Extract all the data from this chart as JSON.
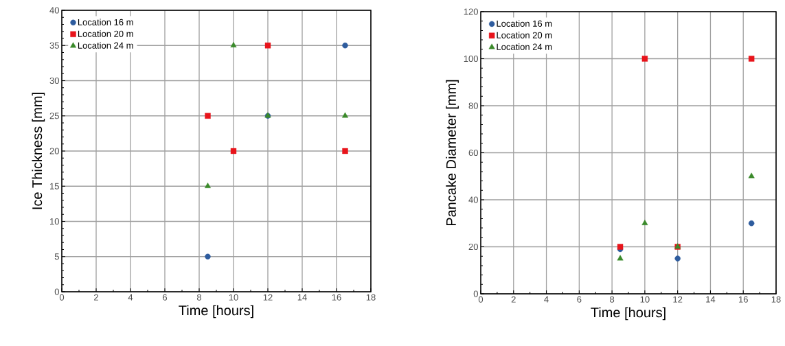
{
  "chart_data": [
    {
      "type": "scatter",
      "xlabel": "Time [hours]",
      "ylabel": "Ice Thickness [mm]",
      "xlim": [
        0,
        18
      ],
      "xticks": [
        0,
        2,
        4,
        6,
        8,
        10,
        12,
        14,
        16,
        18
      ],
      "ylim": [
        0,
        40
      ],
      "yticks": [
        0,
        5,
        10,
        15,
        20,
        25,
        30,
        35,
        40
      ],
      "grid": true,
      "legend": "top left",
      "series": [
        {
          "name": "Location 16 m",
          "color": "#2e5c9e",
          "marker": "circle",
          "x": [
            8.5,
            12,
            16.5
          ],
          "values": [
            5,
            25,
            35
          ]
        },
        {
          "name": "Location 20 m",
          "color": "#e8141b",
          "marker": "square",
          "x": [
            8.5,
            10,
            12,
            16.5
          ],
          "values": [
            25,
            20,
            35,
            20
          ]
        },
        {
          "name": "Location 24 m",
          "color": "#3a8a2a",
          "marker": "triangle",
          "x": [
            8.5,
            10,
            12,
            16.5
          ],
          "values": [
            15,
            35,
            25,
            25
          ]
        }
      ]
    },
    {
      "type": "scatter",
      "xlabel": "Time [hours]",
      "ylabel": "Pancake Diameter [mm]",
      "xlim": [
        0,
        18
      ],
      "xticks": [
        0,
        2,
        4,
        6,
        8,
        10,
        12,
        14,
        16,
        18
      ],
      "ylim": [
        0,
        120
      ],
      "yticks": [
        0,
        20,
        40,
        60,
        80,
        100,
        120
      ],
      "grid": true,
      "legend": "top left",
      "series": [
        {
          "name": "Location 16 m",
          "color": "#2e5c9e",
          "marker": "circle",
          "x": [
            8.5,
            12,
            16.5
          ],
          "values": [
            19,
            15,
            30
          ]
        },
        {
          "name": "Location 20 m",
          "color": "#e8141b",
          "marker": "square",
          "x": [
            8.5,
            10,
            12,
            16.5
          ],
          "values": [
            20,
            100,
            20,
            100
          ]
        },
        {
          "name": "Location 24 m",
          "color": "#3a8a2a",
          "marker": "triangle",
          "x": [
            8.5,
            10,
            12,
            16.5
          ],
          "values": [
            15,
            30,
            20,
            50
          ]
        }
      ]
    }
  ]
}
